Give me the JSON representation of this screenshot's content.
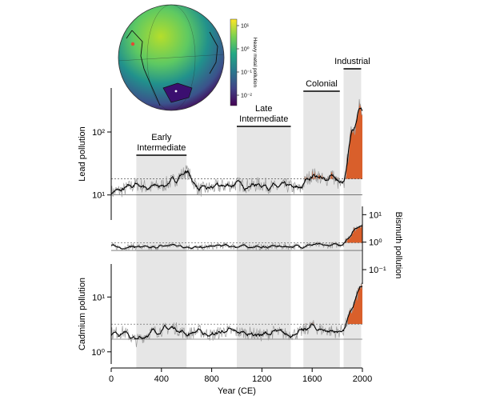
{
  "figure": {
    "colorbar": {
      "title": "Heavy metal pollution",
      "ticks": [
        "10¹",
        "10⁰",
        "10⁻¹",
        "10⁻²"
      ],
      "colormap": [
        "#fde725",
        "#7ad151",
        "#22a884",
        "#2a788e",
        "#414487",
        "#440154"
      ]
    },
    "globe": {
      "description_icon": "globe-icon",
      "ocean_colors": [
        "#5ec962",
        "#21918c",
        "#3b528b",
        "#440154"
      ]
    }
  },
  "chart_data": {
    "type": "line",
    "x_label": "Year (CE)",
    "x_ticks": [
      "0",
      "400",
      "800",
      "1200",
      "1600",
      "2000"
    ],
    "x_tick_values": [
      0,
      400,
      800,
      1200,
      1600,
      2000
    ],
    "xlim": [
      0,
      2000
    ],
    "periods": [
      {
        "name": "Early Intermediate",
        "lines": [
          "Early",
          "Intermediate"
        ],
        "start": 200,
        "end": 600
      },
      {
        "name": "Late Intermediate",
        "lines": [
          "Late",
          "Intermediate"
        ],
        "start": 1000,
        "end": 1430
      },
      {
        "name": "Colonial",
        "lines": [
          "Colonial"
        ],
        "start": 1530,
        "end": 1820
      },
      {
        "name": "Industrial",
        "lines": [
          "Industrial"
        ],
        "start": 1850,
        "end": 1990
      }
    ],
    "shading_color": "#e6e6e6",
    "excess_color": "#d95f2b",
    "panels": [
      {
        "name": "Lead pollution",
        "axis_side": "left",
        "scale": "log",
        "ylim": [
          4,
          500
        ],
        "ticks": [
          {
            "label": "10¹",
            "value": 10
          },
          {
            "label": "10²",
            "value": 100
          }
        ],
        "baseline": 10,
        "threshold": 18,
        "series": [
          {
            "x": 0,
            "y": 11
          },
          {
            "x": 100,
            "y": 12
          },
          {
            "x": 200,
            "y": 15
          },
          {
            "x": 300,
            "y": 13
          },
          {
            "x": 400,
            "y": 14
          },
          {
            "x": 500,
            "y": 17
          },
          {
            "x": 600,
            "y": 24
          },
          {
            "x": 700,
            "y": 12
          },
          {
            "x": 800,
            "y": 13
          },
          {
            "x": 900,
            "y": 14
          },
          {
            "x": 1000,
            "y": 15
          },
          {
            "x": 1100,
            "y": 14
          },
          {
            "x": 1200,
            "y": 15
          },
          {
            "x": 1300,
            "y": 13
          },
          {
            "x": 1400,
            "y": 14
          },
          {
            "x": 1500,
            "y": 12
          },
          {
            "x": 1550,
            "y": 17
          },
          {
            "x": 1600,
            "y": 21
          },
          {
            "x": 1650,
            "y": 20
          },
          {
            "x": 1700,
            "y": 16
          },
          {
            "x": 1750,
            "y": 22
          },
          {
            "x": 1800,
            "y": 16
          },
          {
            "x": 1850,
            "y": 13
          },
          {
            "x": 1880,
            "y": 35
          },
          {
            "x": 1900,
            "y": 70
          },
          {
            "x": 1920,
            "y": 130
          },
          {
            "x": 1940,
            "y": 110
          },
          {
            "x": 1960,
            "y": 220
          },
          {
            "x": 1975,
            "y": 310
          },
          {
            "x": 1990,
            "y": 200
          },
          {
            "x": 2000,
            "y": 170
          }
        ]
      },
      {
        "name": "Bismuth pollution",
        "axis_side": "right",
        "scale": "log",
        "ylim": [
          0.03,
          20
        ],
        "ticks": [
          {
            "label": "10¹",
            "value": 10
          },
          {
            "label": "10⁰",
            "value": 1
          },
          {
            "label": "10⁻¹",
            "value": 0.1
          }
        ],
        "baseline": 0.5,
        "threshold": 0.95,
        "series": [
          {
            "x": 0,
            "y": 0.7
          },
          {
            "x": 100,
            "y": 0.65
          },
          {
            "x": 200,
            "y": 0.7
          },
          {
            "x": 300,
            "y": 0.6
          },
          {
            "x": 400,
            "y": 0.7
          },
          {
            "x": 500,
            "y": 0.8
          },
          {
            "x": 600,
            "y": 0.7
          },
          {
            "x": 700,
            "y": 0.6
          },
          {
            "x": 800,
            "y": 0.7
          },
          {
            "x": 900,
            "y": 0.75
          },
          {
            "x": 1000,
            "y": 0.7
          },
          {
            "x": 1100,
            "y": 0.7
          },
          {
            "x": 1200,
            "y": 0.65
          },
          {
            "x": 1300,
            "y": 0.7
          },
          {
            "x": 1400,
            "y": 0.7
          },
          {
            "x": 1500,
            "y": 0.7
          },
          {
            "x": 1600,
            "y": 0.8
          },
          {
            "x": 1700,
            "y": 0.75
          },
          {
            "x": 1800,
            "y": 0.8
          },
          {
            "x": 1850,
            "y": 0.9
          },
          {
            "x": 1880,
            "y": 1.3
          },
          {
            "x": 1910,
            "y": 2.0
          },
          {
            "x": 1940,
            "y": 3.0
          },
          {
            "x": 1960,
            "y": 3.4
          },
          {
            "x": 1980,
            "y": 4.5
          },
          {
            "x": 2000,
            "y": 4.0
          }
        ]
      },
      {
        "name": "Cadmium pollution",
        "axis_side": "left",
        "scale": "log",
        "ylim": [
          0.6,
          40
        ],
        "ticks": [
          {
            "label": "10⁰",
            "value": 1
          },
          {
            "label": "10¹",
            "value": 10
          }
        ],
        "baseline": 1.7,
        "threshold": 3.2,
        "series": [
          {
            "x": 0,
            "y": 2.2
          },
          {
            "x": 100,
            "y": 2.3
          },
          {
            "x": 200,
            "y": 1.6
          },
          {
            "x": 300,
            "y": 2.2
          },
          {
            "x": 400,
            "y": 2.5
          },
          {
            "x": 500,
            "y": 2.8
          },
          {
            "x": 600,
            "y": 2.1
          },
          {
            "x": 700,
            "y": 2.4
          },
          {
            "x": 800,
            "y": 2.0
          },
          {
            "x": 900,
            "y": 2.4
          },
          {
            "x": 1000,
            "y": 2.3
          },
          {
            "x": 1100,
            "y": 2.2
          },
          {
            "x": 1200,
            "y": 2.0
          },
          {
            "x": 1300,
            "y": 2.3
          },
          {
            "x": 1400,
            "y": 2.1
          },
          {
            "x": 1500,
            "y": 2.2
          },
          {
            "x": 1600,
            "y": 3.0
          },
          {
            "x": 1650,
            "y": 2.6
          },
          {
            "x": 1700,
            "y": 2.5
          },
          {
            "x": 1800,
            "y": 2.3
          },
          {
            "x": 1850,
            "y": 2.5
          },
          {
            "x": 1880,
            "y": 3.6
          },
          {
            "x": 1910,
            "y": 5.5
          },
          {
            "x": 1940,
            "y": 8.0
          },
          {
            "x": 1960,
            "y": 11
          },
          {
            "x": 1980,
            "y": 16
          },
          {
            "x": 2000,
            "y": 13
          }
        ]
      }
    ]
  }
}
